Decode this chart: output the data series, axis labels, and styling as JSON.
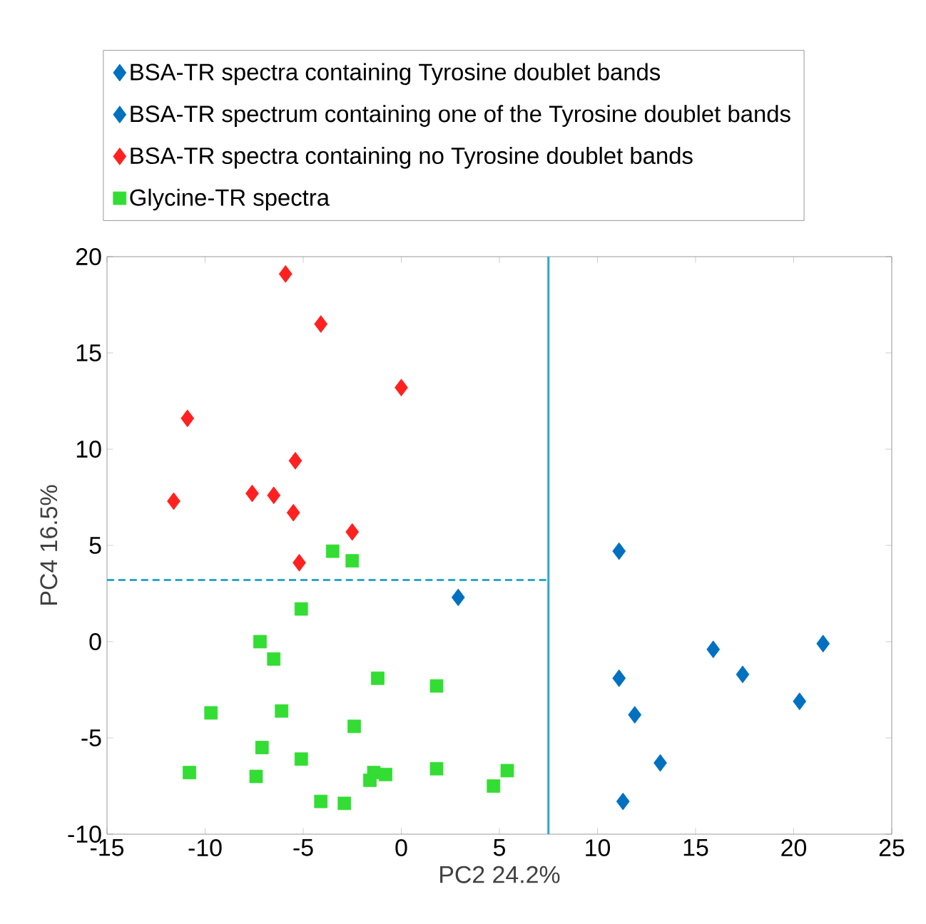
{
  "chart_data": {
    "type": "scatter",
    "xlabel": "PC2 24.2%",
    "ylabel": "PC4 16.5%",
    "xlim": [
      -15,
      25
    ],
    "ylim": [
      -10,
      20
    ],
    "xticks": [
      -15,
      -10,
      -5,
      0,
      5,
      10,
      15,
      20,
      25
    ],
    "yticks": [
      -10,
      -5,
      0,
      5,
      10,
      15,
      20
    ],
    "marker": "diamond",
    "legend": "top",
    "grid": false,
    "series": [
      {
        "name": "BSA-TR spectra containing Tyrosine doublet bands",
        "color": "#0070c0",
        "x": [
          11.1,
          11.1,
          11.9,
          13.2,
          11.3,
          15.9,
          17.4,
          20.3,
          21.5
        ],
        "values": [
          4.7,
          -1.9,
          -3.8,
          -6.3,
          -8.3,
          -0.4,
          -1.7,
          -3.1,
          -0.1
        ]
      },
      {
        "name": "BSA-TR spectrum containing one of the Tyrosine doublet bands",
        "color": "#0070c0",
        "x": [
          2.9
        ],
        "values": [
          2.3
        ]
      },
      {
        "name": "BSA-TR spectra containing no Tyrosine doublet bands",
        "color": "#ff2020",
        "x": [
          -5.9,
          -4.1,
          0,
          -10.9,
          -5.4,
          -11.6,
          -7.6,
          -6.5,
          -5.5,
          -2.5,
          -5.2
        ],
        "values": [
          19.1,
          16.5,
          13.2,
          11.6,
          9.4,
          7.3,
          7.7,
          7.6,
          6.7,
          5.7,
          4.1
        ]
      },
      {
        "name": "Glycine-TR spectra",
        "color": "#33dd33",
        "marker": "square",
        "x": [
          -3.5,
          -2.5,
          -5.1,
          -7.2,
          -6.5,
          -1.2,
          1.8,
          -9.7,
          -6.1,
          -2.4,
          -7.1,
          -5.1,
          -10.8,
          -7.4,
          1.8,
          -1.4,
          -0.8,
          -1.6,
          5.4,
          4.7,
          -4.1,
          -2.9
        ],
        "values": [
          4.7,
          4.2,
          1.7,
          0.0,
          -0.9,
          -1.9,
          -2.3,
          -3.7,
          -3.6,
          -4.4,
          -5.5,
          -6.1,
          -6.8,
          -7.0,
          -6.6,
          -6.8,
          -6.9,
          -7.2,
          -6.7,
          -7.5,
          -8.3,
          -8.4
        ]
      }
    ],
    "ref_lines": [
      {
        "axis": "x",
        "value": 7.5,
        "color": "#2ea6cc",
        "line_style": "solid"
      },
      {
        "axis": "y",
        "value": 3.2,
        "color": "#2ea6cc",
        "line_style": "dashed"
      }
    ]
  }
}
